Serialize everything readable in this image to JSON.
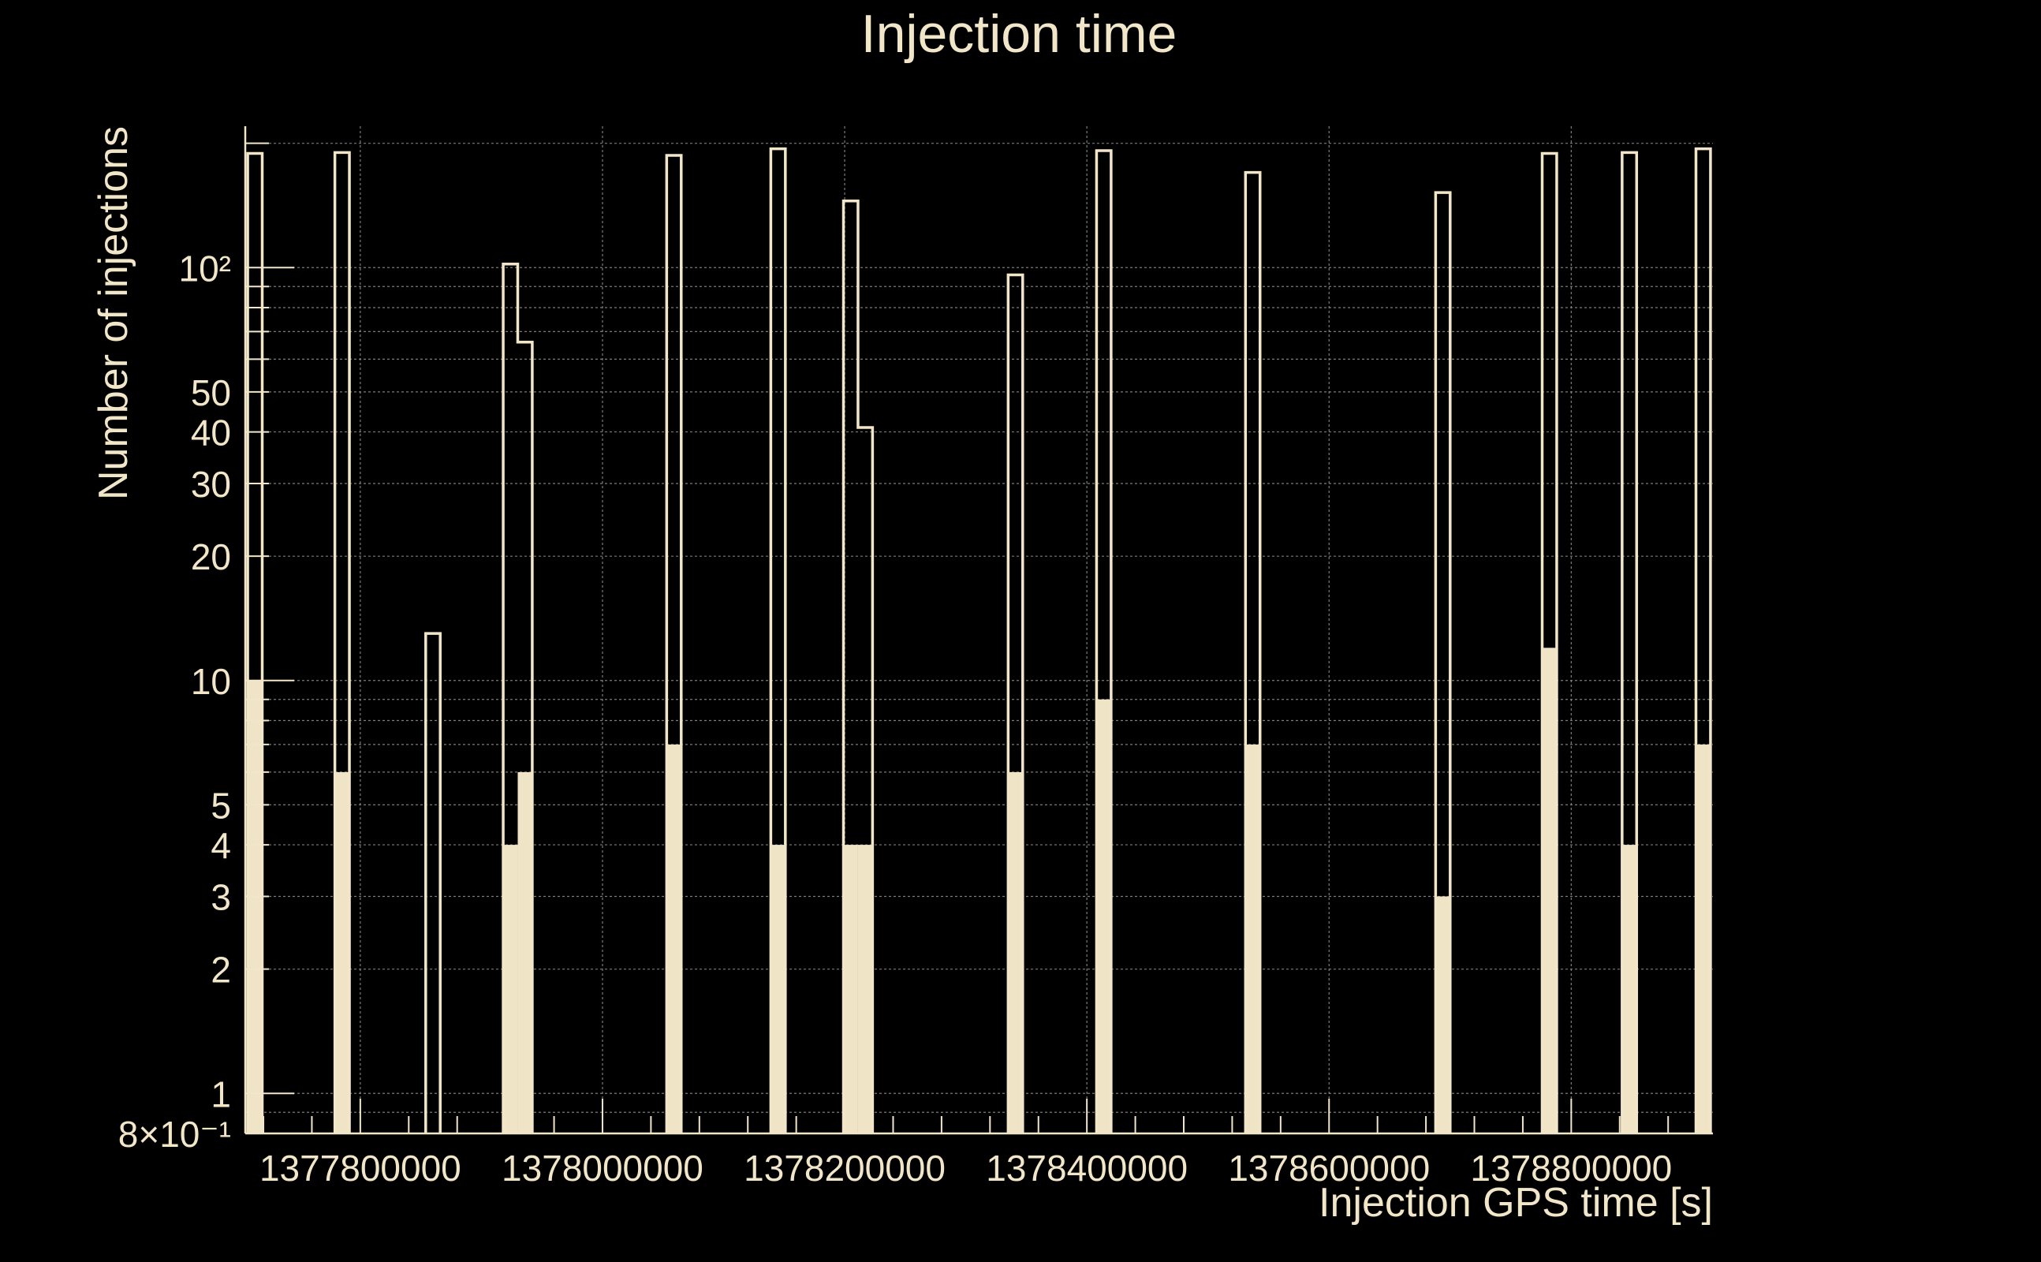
{
  "chart_data": {
    "type": "bar",
    "title": "Injection time",
    "xlabel": "Injection GPS time [s]",
    "ylabel": "Number of injections",
    "y_scale": "log",
    "ylim": [
      0.8,
      220
    ],
    "xlim": [
      1377705000,
      1378917000
    ],
    "grid": true,
    "legend": "none",
    "x_ticks": [
      1377800000,
      1378000000,
      1378200000,
      1378400000,
      1378600000,
      1378800000
    ],
    "x_tick_labels": [
      "1377800000",
      "1378000000",
      "1378200000",
      "1378400000",
      "1378600000",
      "1378800000"
    ],
    "y_ticks": [
      0.8,
      1,
      2,
      3,
      4,
      5,
      10,
      20,
      30,
      40,
      50,
      100
    ],
    "y_tick_labels": [
      "8×10⁻¹",
      "1",
      "2",
      "3",
      "4",
      "5",
      "10",
      "20",
      "30",
      "40",
      "50",
      "10²"
    ],
    "series": [
      {
        "style": "outline",
        "bins": [
          {
            "x0": 1377707000,
            "x1": 1377719000,
            "value": 189
          },
          {
            "x0": 1377779000,
            "x1": 1377791000,
            "value": 190
          },
          {
            "x0": 1377854000,
            "x1": 1377866000,
            "value": 13
          },
          {
            "x0": 1377918000,
            "x1": 1377930000,
            "value": 102
          },
          {
            "x0": 1377930000,
            "x1": 1377942000,
            "value": 66
          },
          {
            "x0": 1378053000,
            "x1": 1378065000,
            "value": 187
          },
          {
            "x0": 1378139000,
            "x1": 1378151000,
            "value": 194
          },
          {
            "x0": 1378199000,
            "x1": 1378211000,
            "value": 145
          },
          {
            "x0": 1378211000,
            "x1": 1378223000,
            "value": 41
          },
          {
            "x0": 1378335000,
            "x1": 1378347000,
            "value": 96
          },
          {
            "x0": 1378408000,
            "x1": 1378420000,
            "value": 192
          },
          {
            "x0": 1378531000,
            "x1": 1378543000,
            "value": 170
          },
          {
            "x0": 1378688000,
            "x1": 1378700000,
            "value": 152
          },
          {
            "x0": 1378776000,
            "x1": 1378788000,
            "value": 189
          },
          {
            "x0": 1378842000,
            "x1": 1378854000,
            "value": 190
          },
          {
            "x0": 1378903000,
            "x1": 1378915000,
            "value": 194
          }
        ]
      },
      {
        "style": "filled",
        "bins": [
          {
            "x0": 1377707000,
            "x1": 1377719000,
            "value": 10
          },
          {
            "x0": 1377779000,
            "x1": 1377791000,
            "value": 6
          },
          {
            "x0": 1377918000,
            "x1": 1377930000,
            "value": 4
          },
          {
            "x0": 1377930000,
            "x1": 1377942000,
            "value": 6
          },
          {
            "x0": 1378053000,
            "x1": 1378065000,
            "value": 7
          },
          {
            "x0": 1378139000,
            "x1": 1378151000,
            "value": 4
          },
          {
            "x0": 1378199000,
            "x1": 1378211000,
            "value": 4
          },
          {
            "x0": 1378211000,
            "x1": 1378223000,
            "value": 4
          },
          {
            "x0": 1378335000,
            "x1": 1378347000,
            "value": 6
          },
          {
            "x0": 1378408000,
            "x1": 1378420000,
            "value": 9
          },
          {
            "x0": 1378531000,
            "x1": 1378543000,
            "value": 7
          },
          {
            "x0": 1378688000,
            "x1": 1378700000,
            "value": 3
          },
          {
            "x0": 1378776000,
            "x1": 1378788000,
            "value": 12
          },
          {
            "x0": 1378842000,
            "x1": 1378854000,
            "value": 4
          },
          {
            "x0": 1378903000,
            "x1": 1378915000,
            "value": 7
          }
        ]
      }
    ],
    "colors": {
      "background": "#000000",
      "foreground": "#f2e6c9",
      "fill": "#efe4c6",
      "grid": "#8a8a8a"
    }
  }
}
